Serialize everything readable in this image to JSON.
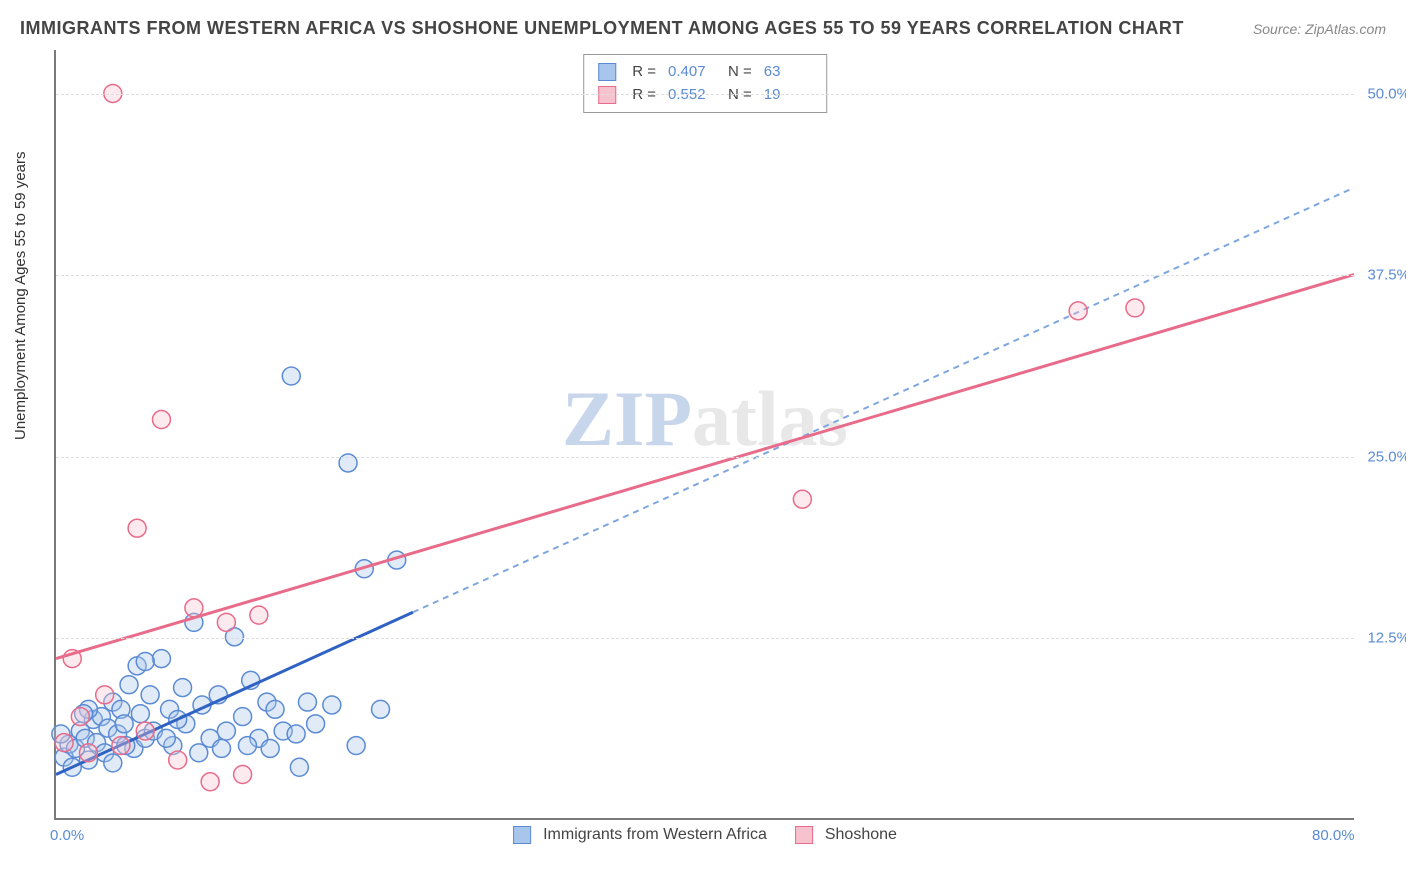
{
  "title": "IMMIGRANTS FROM WESTERN AFRICA VS SHOSHONE UNEMPLOYMENT AMONG AGES 55 TO 59 YEARS CORRELATION CHART",
  "source": "Source: ZipAtlas.com",
  "yaxis_title": "Unemployment Among Ages 55 to 59 years",
  "watermark": {
    "pre": "ZIP",
    "post": "atlas"
  },
  "chart": {
    "type": "scatter",
    "xlim": [
      0,
      80
    ],
    "ylim": [
      0,
      53
    ],
    "xticks": [
      {
        "value": 0,
        "label": "0.0%"
      },
      {
        "value": 80,
        "label": "80.0%"
      }
    ],
    "yticks": [
      {
        "value": 12.5,
        "label": "12.5%"
      },
      {
        "value": 25.0,
        "label": "25.0%"
      },
      {
        "value": 37.5,
        "label": "37.5%"
      },
      {
        "value": 50.0,
        "label": "50.0%"
      }
    ],
    "grid_color": "#dddddd",
    "background_color": "#ffffff",
    "marker_radius": 9,
    "marker_fill_opacity": 0.35,
    "marker_stroke_width": 1.5,
    "series": [
      {
        "name": "Immigrants from Western Africa",
        "color_fill": "#a8c5ec",
        "color_stroke": "#5b8bd4",
        "stats": {
          "R": "0.407",
          "N": "63"
        },
        "trend": {
          "solid": {
            "x1": 0,
            "y1": 3.0,
            "x2": 22,
            "y2": 14.2
          },
          "dashed": {
            "x1": 22,
            "y1": 14.2,
            "x2": 80,
            "y2": 43.5
          },
          "solid_color": "#2f62c2",
          "solid_width": 3,
          "dashed_color": "#7ea6e0",
          "dashed_width": 2,
          "dash": "6 5"
        },
        "points": [
          [
            0.5,
            4.2
          ],
          [
            0.8,
            5.1
          ],
          [
            1.0,
            3.5
          ],
          [
            1.2,
            4.8
          ],
          [
            1.5,
            6.0
          ],
          [
            1.8,
            5.5
          ],
          [
            2.0,
            4.0
          ],
          [
            2.3,
            6.8
          ],
          [
            2.5,
            5.2
          ],
          [
            2.8,
            7.0
          ],
          [
            3.0,
            4.5
          ],
          [
            3.2,
            6.2
          ],
          [
            3.5,
            8.0
          ],
          [
            3.8,
            5.8
          ],
          [
            4.0,
            7.5
          ],
          [
            4.2,
            6.5
          ],
          [
            4.5,
            9.2
          ],
          [
            4.8,
            4.8
          ],
          [
            5.0,
            10.5
          ],
          [
            5.2,
            7.2
          ],
          [
            5.5,
            5.5
          ],
          [
            5.8,
            8.5
          ],
          [
            6.0,
            6.0
          ],
          [
            6.5,
            11.0
          ],
          [
            7.0,
            7.5
          ],
          [
            7.2,
            5.0
          ],
          [
            7.8,
            9.0
          ],
          [
            8.0,
            6.5
          ],
          [
            8.5,
            13.5
          ],
          [
            9.0,
            7.8
          ],
          [
            9.5,
            5.5
          ],
          [
            10.0,
            8.5
          ],
          [
            10.5,
            6.0
          ],
          [
            11.0,
            12.5
          ],
          [
            11.5,
            7.0
          ],
          [
            12.0,
            9.5
          ],
          [
            12.5,
            5.5
          ],
          [
            13.0,
            8.0
          ],
          [
            13.5,
            7.5
          ],
          [
            14.0,
            6.0
          ],
          [
            14.5,
            30.5
          ],
          [
            15.0,
            3.5
          ],
          [
            15.5,
            8.0
          ],
          [
            16.0,
            6.5
          ],
          [
            17.0,
            7.8
          ],
          [
            18.0,
            24.5
          ],
          [
            18.5,
            5.0
          ],
          [
            19.0,
            17.2
          ],
          [
            20.0,
            7.5
          ],
          [
            21.0,
            17.8
          ],
          [
            2.0,
            7.5
          ],
          [
            3.5,
            3.8
          ],
          [
            5.5,
            10.8
          ],
          [
            6.8,
            5.5
          ],
          [
            8.8,
            4.5
          ],
          [
            10.2,
            4.8
          ],
          [
            11.8,
            5.0
          ],
          [
            13.2,
            4.8
          ],
          [
            0.3,
            5.8
          ],
          [
            1.7,
            7.2
          ],
          [
            4.3,
            5.0
          ],
          [
            7.5,
            6.8
          ],
          [
            14.8,
            5.8
          ]
        ]
      },
      {
        "name": "Shoshone",
        "color_fill": "#f5c2cd",
        "color_stroke": "#e86b8a",
        "stats": {
          "R": "0.552",
          "N": "19"
        },
        "trend": {
          "solid": {
            "x1": 0,
            "y1": 11.0,
            "x2": 80,
            "y2": 37.5
          },
          "solid_color": "#e86b8a",
          "solid_width": 3
        },
        "points": [
          [
            0.5,
            5.2
          ],
          [
            1.0,
            11.0
          ],
          [
            1.5,
            7.0
          ],
          [
            2.0,
            4.5
          ],
          [
            3.0,
            8.5
          ],
          [
            3.5,
            50.0
          ],
          [
            4.0,
            5.0
          ],
          [
            5.0,
            20.0
          ],
          [
            5.5,
            6.0
          ],
          [
            6.5,
            27.5
          ],
          [
            7.5,
            4.0
          ],
          [
            8.5,
            14.5
          ],
          [
            9.5,
            2.5
          ],
          [
            10.5,
            13.5
          ],
          [
            11.5,
            3.0
          ],
          [
            12.5,
            14.0
          ],
          [
            46.0,
            22.0
          ],
          [
            63.0,
            35.0
          ],
          [
            66.5,
            35.2
          ]
        ]
      }
    ]
  },
  "legend_bottom": [
    {
      "label": "Immigrants from Western Africa",
      "fill": "#a8c5ec",
      "stroke": "#5b8bd4"
    },
    {
      "label": "Shoshone",
      "fill": "#f5c2cd",
      "stroke": "#e86b8a"
    }
  ]
}
